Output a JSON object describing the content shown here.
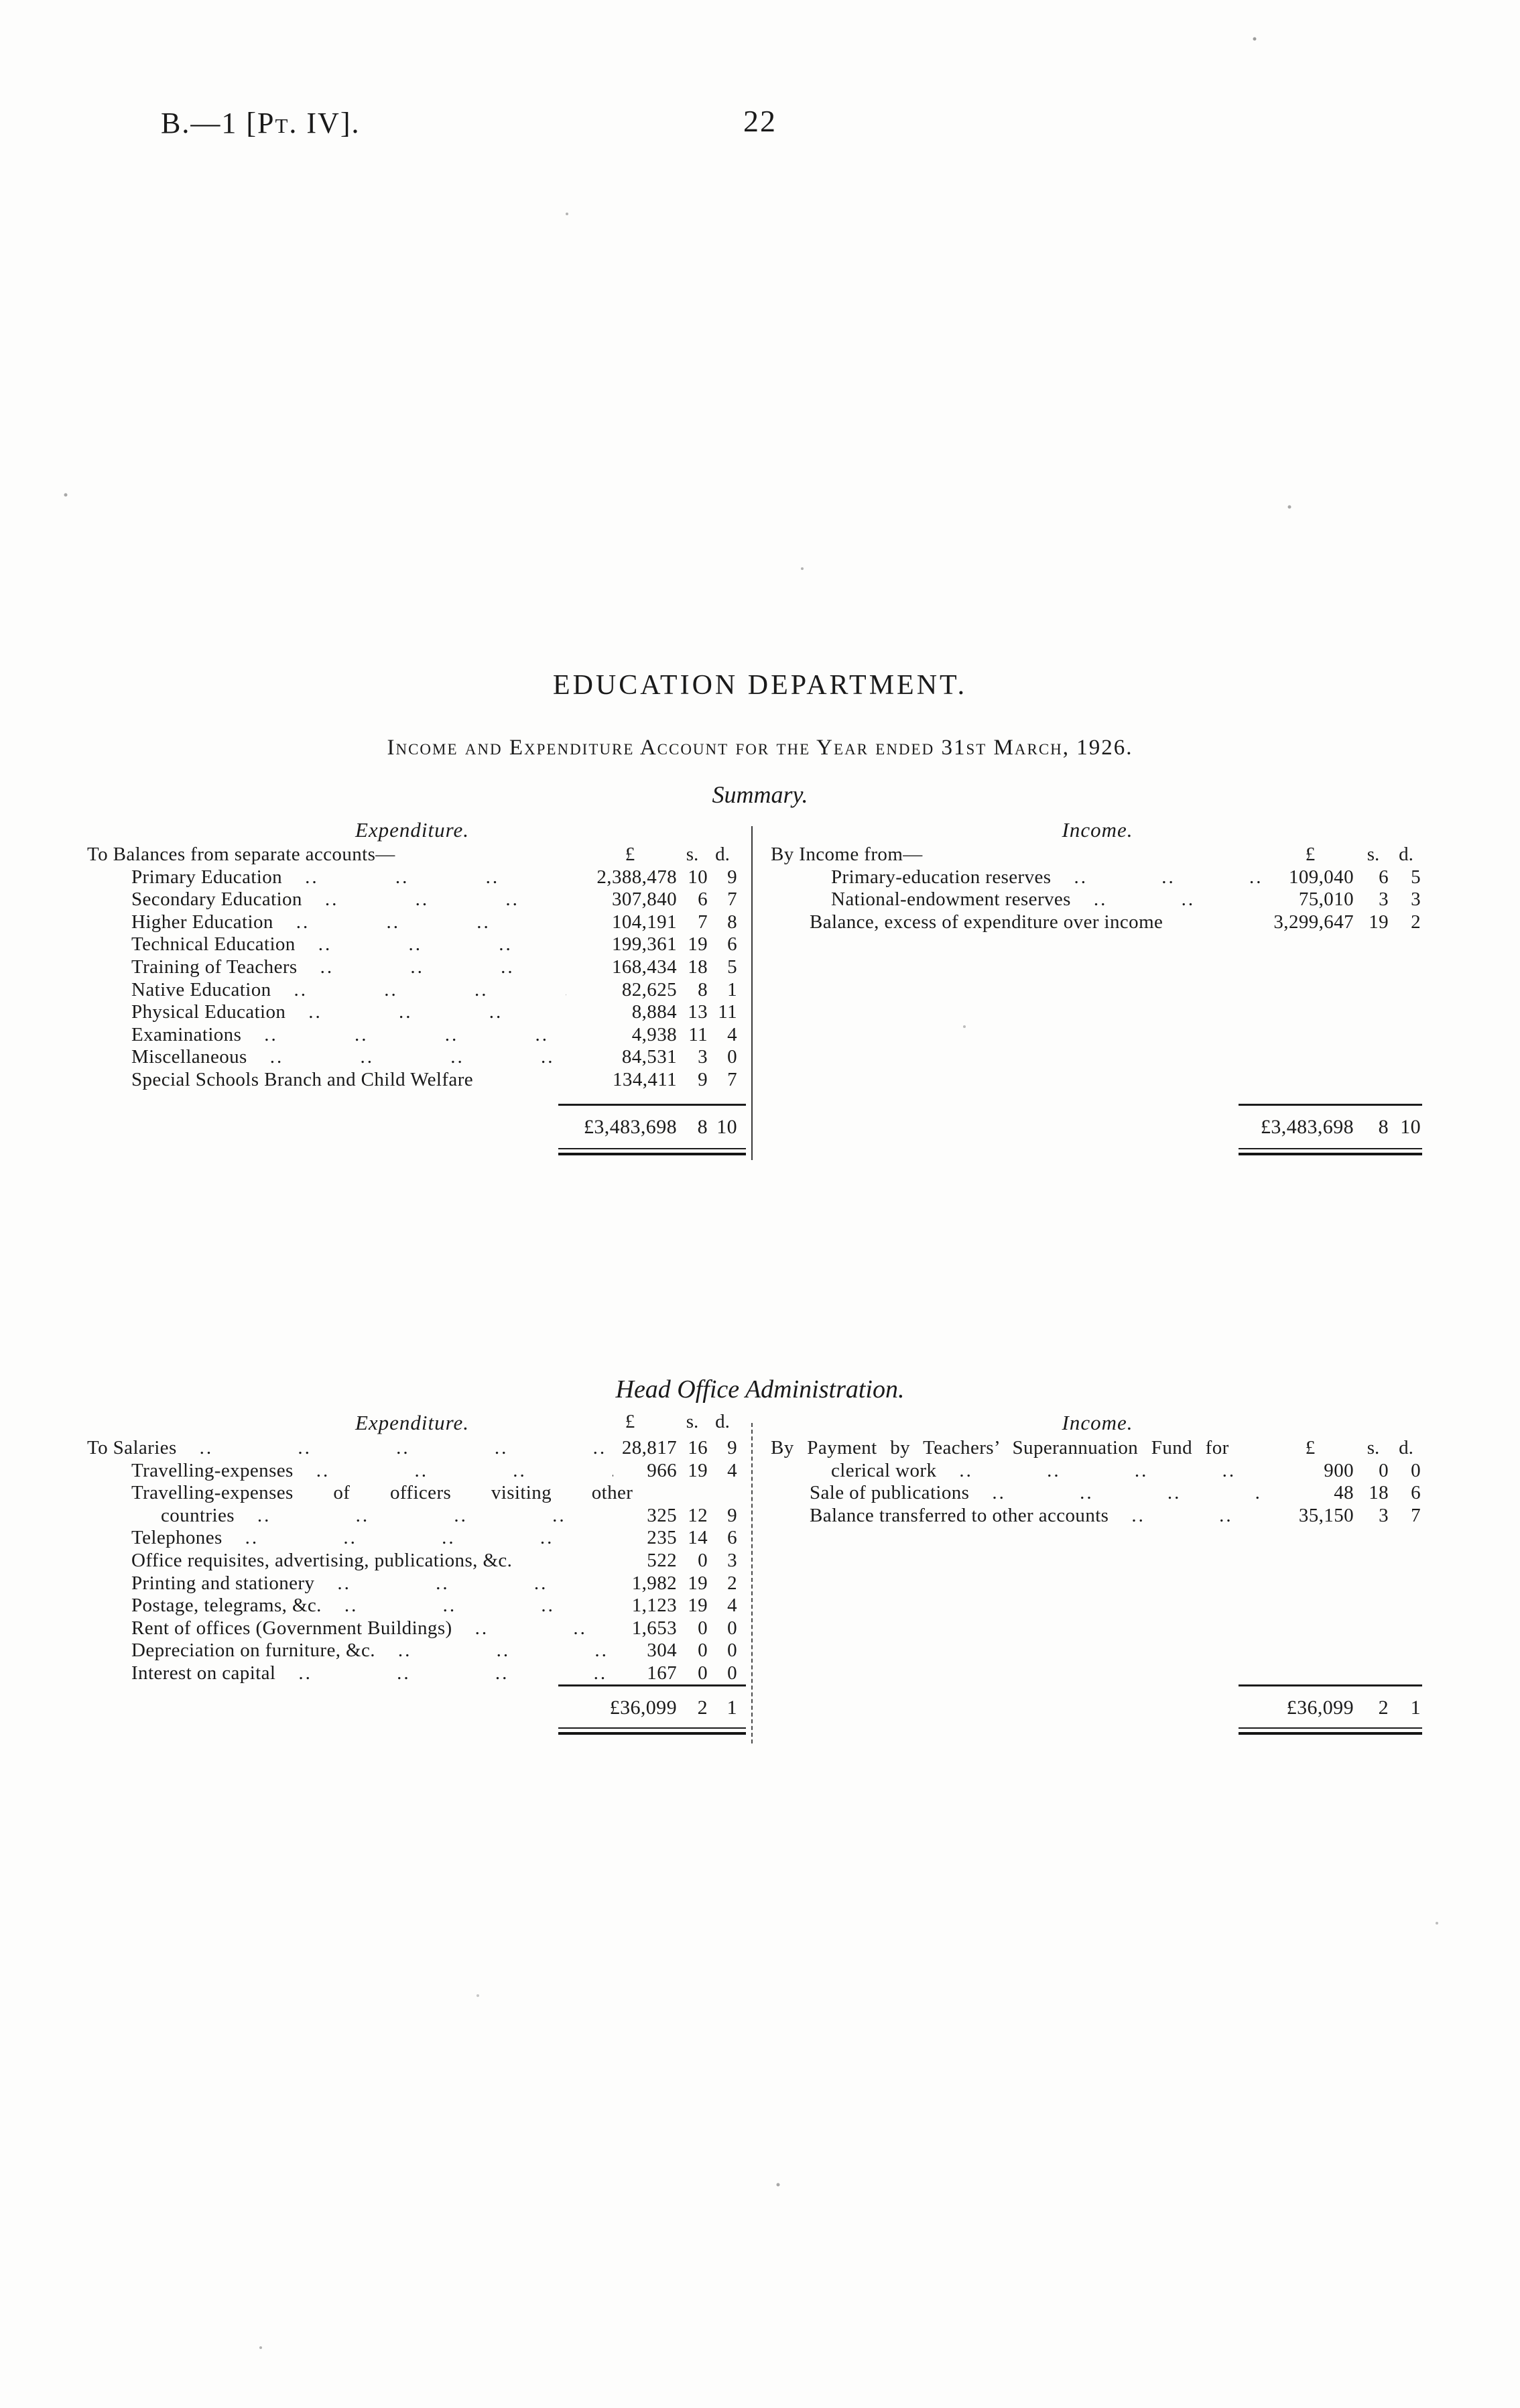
{
  "header": {
    "doc_ref": "B.—1 [Pt. IV].",
    "page_number": "22"
  },
  "title": "EDUCATION DEPARTMENT.",
  "subtitle": "Income and Expenditure Account for the Year ended 31st March, 1926.",
  "currency_headers": {
    "pounds": "£",
    "shillings": "s.",
    "pence": "d."
  },
  "sections": [
    {
      "heading": "Summary.",
      "columns": [
        {
          "side": "left",
          "heading": "Expenditure.",
          "heading_has_currency_headers": false,
          "rows": [
            {
              "label": "To Balances from separate accounts—",
              "indent": 0,
              "dots": false,
              "currency_headers": true
            },
            {
              "label": "Primary Education",
              "indent": 1,
              "dots": true,
              "pounds": "2,388,478",
              "s": "10",
              "d": "9"
            },
            {
              "label": "Secondary Education",
              "indent": 1,
              "dots": true,
              "pounds": "307,840",
              "s": "6",
              "d": "7"
            },
            {
              "label": "Higher Education",
              "indent": 1,
              "dots": true,
              "pounds": "104,191",
              "s": "7",
              "d": "8"
            },
            {
              "label": "Technical Education",
              "indent": 1,
              "dots": true,
              "pounds": "199,361",
              "s": "19",
              "d": "6"
            },
            {
              "label": "Training of Teachers",
              "indent": 1,
              "dots": true,
              "pounds": "168,434",
              "s": "18",
              "d": "5"
            },
            {
              "label": "Native Education",
              "indent": 1,
              "dots": true,
              "pounds": "82,625",
              "s": "8",
              "d": "1"
            },
            {
              "label": "Physical Education",
              "indent": 1,
              "dots": true,
              "pounds": "8,884",
              "s": "13",
              "d": "11"
            },
            {
              "label": "Examinations",
              "indent": 1,
              "dots": true,
              "pounds": "4,938",
              "s": "11",
              "d": "4"
            },
            {
              "label": "Miscellaneous",
              "indent": 1,
              "dots": true,
              "pounds": "84,531",
              "s": "3",
              "d": "0"
            },
            {
              "label": "Special Schools Branch and Child Welfare",
              "indent": 1,
              "dots": false,
              "pounds": "134,411",
              "s": "9",
              "d": "7"
            }
          ],
          "total": {
            "pounds": "£3,483,698",
            "s": "8",
            "d": "10"
          }
        },
        {
          "side": "right",
          "heading": "Income.",
          "heading_has_currency_headers": false,
          "rows": [
            {
              "label": "By Income from—",
              "indent": 0,
              "dots": false,
              "currency_headers": true
            },
            {
              "label": "Primary-education reserves",
              "indent": 2,
              "dots": true,
              "pounds": "109,040",
              "s": "6",
              "d": "5"
            },
            {
              "label": "National-endowment reserves",
              "indent": 2,
              "dots": true,
              "pounds": "75,010",
              "s": "3",
              "d": "3"
            },
            {
              "label": "Balance, excess of expenditure over income",
              "indent": 1,
              "dots": false,
              "pounds": "3,299,647",
              "s": "19",
              "d": "2"
            }
          ],
          "total": {
            "pounds": "£3,483,698",
            "s": "8",
            "d": "10"
          }
        }
      ]
    },
    {
      "heading": "Head Office Administration.",
      "columns": [
        {
          "side": "left",
          "heading": "Expenditure.",
          "heading_has_currency_headers": true,
          "rows": [
            {
              "label": "To Salaries",
              "indent": 0,
              "dots": true,
              "pounds": "28,817",
              "s": "16",
              "d": "9"
            },
            {
              "label": "Travelling-expenses",
              "indent": 1,
              "dots": true,
              "pounds": "966",
              "s": "19",
              "d": "4"
            },
            {
              "label": "Travelling-expenses of officers visiting other",
              "indent": 1,
              "dots": false,
              "ws": 52,
              "spread": true
            },
            {
              "label": "countries",
              "indent": 2,
              "dots": true,
              "pounds": "325",
              "s": "12",
              "d": "9"
            },
            {
              "label": "Telephones",
              "indent": 1,
              "dots": true,
              "pounds": "235",
              "s": "14",
              "d": "6"
            },
            {
              "label": "Office requisites, advertising, publications, &c.",
              "indent": 1,
              "dots": false,
              "pounds": "522",
              "s": "0",
              "d": "3"
            },
            {
              "label": "Printing and stationery",
              "indent": 1,
              "dots": true,
              "pounds": "1,982",
              "s": "19",
              "d": "2"
            },
            {
              "label": "Postage, telegrams, &c.",
              "indent": 1,
              "dots": true,
              "pounds": "1,123",
              "s": "19",
              "d": "4"
            },
            {
              "label": "Rent of offices (Government Buildings)",
              "indent": 1,
              "dots": true,
              "pounds": "1,653",
              "s": "0",
              "d": "0"
            },
            {
              "label": "Depreciation on furniture, &c.",
              "indent": 1,
              "dots": true,
              "pounds": "304",
              "s": "0",
              "d": "0"
            },
            {
              "label": "Interest on capital",
              "indent": 1,
              "dots": true,
              "pounds": "167",
              "s": "0",
              "d": "0"
            }
          ],
          "total": {
            "pounds": "£36,099",
            "s": "2",
            "d": "1"
          }
        },
        {
          "side": "right",
          "heading": "Income.",
          "heading_has_currency_headers": false,
          "rows": [
            {
              "label": "By Payment by Teachers’ Superannuation Fund for",
              "indent": 0,
              "dots": false,
              "ws": 12,
              "currency_headers": true
            },
            {
              "label": "clerical work",
              "indent": 2,
              "dots": true,
              "pounds": "900",
              "s": "0",
              "d": "0"
            },
            {
              "label": "Sale of publications",
              "indent": 1,
              "dots": true,
              "pounds": "48",
              "s": "18",
              "d": "6"
            },
            {
              "label": "Balance transferred to other accounts",
              "indent": 1,
              "dots": true,
              "pounds": "35,150",
              "s": "3",
              "d": "7"
            }
          ],
          "total": {
            "pounds": "£36,099",
            "s": "2",
            "d": "1"
          }
        }
      ]
    }
  ]
}
